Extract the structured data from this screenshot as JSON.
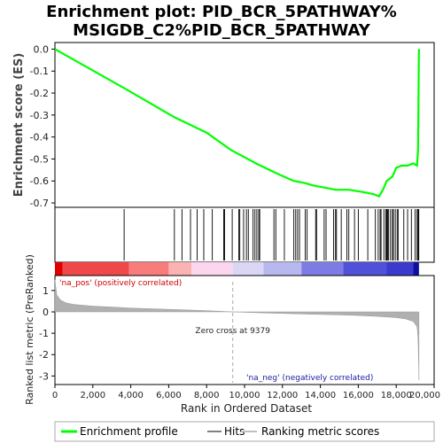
{
  "title_line1": "Enrichment plot: PID_BCR_5PATHWAY%",
  "title_line2": "MSIGDB_C2%PID_BCR_5PATHWAY",
  "chart_data": {
    "type": "line",
    "title": "Enrichment plot: PID_BCR_5PATHWAY% MSIGDB_C2%PID_BCR_5PATHWAY",
    "es_panel": {
      "ylabel": "Enrichment score (ES)",
      "ylim": [
        -0.72,
        0.03
      ],
      "yticks": [
        "0.0",
        "-0.1",
        "-0.2",
        "-0.3",
        "-0.4",
        "-0.5",
        "-0.6",
        "-0.7"
      ],
      "series": [
        {
          "name": "Enrichment profile",
          "color": "#00ff00",
          "x": [
            0,
            3700,
            6300,
            8000,
            9300,
            10600,
            11800,
            12600,
            13200,
            13600,
            14200,
            14800,
            15500,
            16200,
            16800,
            17100,
            17300,
            17500,
            17800,
            18000,
            18300,
            18600,
            18900,
            19100,
            19150,
            19170,
            19180,
            19190,
            19200
          ],
          "y": [
            0.0,
            -0.18,
            -0.31,
            -0.38,
            -0.46,
            -0.52,
            -0.57,
            -0.6,
            -0.61,
            -0.62,
            -0.63,
            -0.64,
            -0.64,
            -0.65,
            -0.66,
            -0.67,
            -0.64,
            -0.6,
            -0.58,
            -0.54,
            -0.53,
            -0.53,
            -0.52,
            -0.53,
            -0.46,
            -0.3,
            -0.15,
            -0.05,
            0.0
          ]
        }
      ]
    },
    "hits": [
      3650,
      6300,
      6700,
      7150,
      7500,
      7850,
      8300,
      8900,
      8950,
      9350,
      9700,
      9750,
      9950,
      10100,
      10200,
      10450,
      10550,
      10650,
      10750,
      10800,
      11550,
      11650,
      12100,
      12600,
      12700,
      12800,
      12900,
      13200,
      13300,
      13750,
      13800,
      14200,
      14300,
      14700,
      14800,
      14850,
      15100,
      15400,
      15500,
      15800,
      16000,
      16500,
      16900,
      17050,
      17150,
      17200,
      17350,
      17450,
      17500,
      17550,
      17600,
      17700,
      17800,
      17850,
      17950,
      18050,
      18100,
      18400,
      18600,
      18800,
      19000,
      19100,
      19150,
      19170,
      19190
    ],
    "xlim": [
      0,
      20000
    ],
    "xticks": [
      "0",
      "2,000",
      "4,000",
      "6,000",
      "8,000",
      "10,000",
      "12,000",
      "14,000",
      "16,000",
      "18,000",
      "20,000"
    ],
    "xtick_values": [
      0,
      2000,
      4000,
      6000,
      8000,
      10000,
      12000,
      14000,
      16000,
      18000,
      20000
    ],
    "xlabel": "Rank in Ordered Dataset",
    "metric_panel": {
      "ylabel": "Ranked list metric (PreRanked)",
      "ylim": [
        -3.4,
        1.7
      ],
      "yticks": [
        "1",
        "0",
        "-1",
        "-2",
        "-3"
      ],
      "ytick_values": [
        1,
        0,
        -1,
        -2,
        -3
      ],
      "series": [
        {
          "name": "Ranking metric scores",
          "color": "#b0b0b0",
          "x": [
            0,
            100,
            300,
            600,
            1000,
            2000,
            3000,
            4000,
            6000,
            8000,
            9379,
            11000,
            13000,
            15000,
            16000,
            17000,
            18000,
            18500,
            18900,
            19100,
            19150,
            19180,
            19200
          ],
          "y": [
            1.5,
            0.8,
            0.55,
            0.42,
            0.35,
            0.27,
            0.23,
            0.18,
            0.12,
            0.06,
            0.0,
            -0.05,
            -0.1,
            -0.14,
            -0.17,
            -0.21,
            -0.27,
            -0.33,
            -0.45,
            -0.7,
            -1.2,
            -2.4,
            -3.2
          ]
        }
      ],
      "zero_cross_label": "Zero cross at 9379",
      "zero_cross": 9379,
      "pos_label": "'na_pos' (positively correlated)",
      "neg_label": "'na_neg' (negatively correlated)"
    },
    "legend": {
      "placement": "bottom",
      "entries": [
        "Enrichment profile",
        "Hits",
        "Ranking metric scores"
      ],
      "colors": [
        "#00ff00",
        "#000000",
        "#c0c0c0"
      ]
    }
  }
}
